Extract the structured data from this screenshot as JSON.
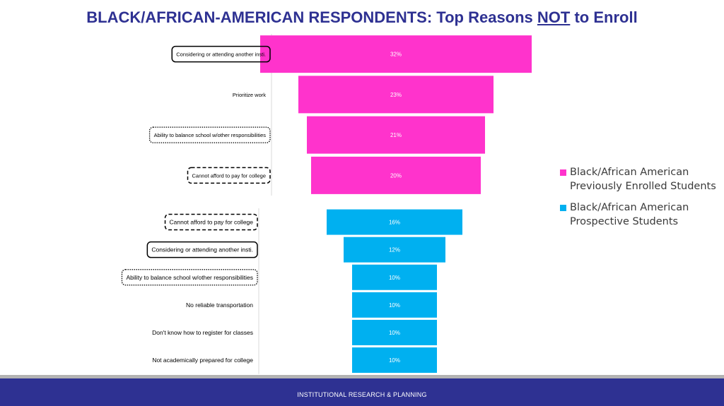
{
  "title": {
    "main": "BLACK/AFRICAN-AMERICAN RESPONDENTS:  Top Reasons ",
    "underlined": "NOT",
    "tail": " to Enroll"
  },
  "colors": {
    "previously_enrolled": "#ff33cc",
    "prospective": "#00b0f0",
    "title": "#2e3192",
    "footer": "#2e3192"
  },
  "legend": [
    {
      "line1": "Black/African American",
      "line2": "Previously Enrolled Students",
      "color": "#ff33cc"
    },
    {
      "line1": "Black/African American",
      "line2": "Prospective Students",
      "color": "#00b0f0"
    }
  ],
  "footer": {
    "text": "INSTITUTIONAL RESEARCH & PLANNING"
  },
  "chart_data": [
    {
      "type": "bar",
      "orientation": "horizontal-funnel",
      "series_name": "Black/African American Previously Enrolled Students",
      "color": "#ff33cc",
      "categories": [
        "Considering or attending another insti.",
        "Prioritize work",
        "Ability to balance school w/other responsibilities",
        "Cannot afford to pay for college"
      ],
      "values": [
        32,
        23,
        21,
        20
      ],
      "labels": [
        "32%",
        "23%",
        "21%",
        "20%"
      ],
      "box_style": [
        "solid",
        "none",
        "dotted",
        "dashed"
      ]
    },
    {
      "type": "bar",
      "orientation": "horizontal-funnel",
      "series_name": "Black/African American Prospective Students",
      "color": "#00b0f0",
      "categories": [
        "Cannot afford to pay for college",
        "Considering or attending another insti.",
        "Ability to balance school w/other responsibilities",
        "No reliable transportation",
        "Don't know how to register for classes",
        "Not academically prepared for college"
      ],
      "values": [
        16,
        12,
        10,
        10,
        10,
        10
      ],
      "labels": [
        "16%",
        "12%",
        "10%",
        "10%",
        "10%",
        "10%"
      ],
      "box_style": [
        "dashed",
        "solid",
        "dotted",
        "none",
        "none",
        "none"
      ]
    }
  ]
}
